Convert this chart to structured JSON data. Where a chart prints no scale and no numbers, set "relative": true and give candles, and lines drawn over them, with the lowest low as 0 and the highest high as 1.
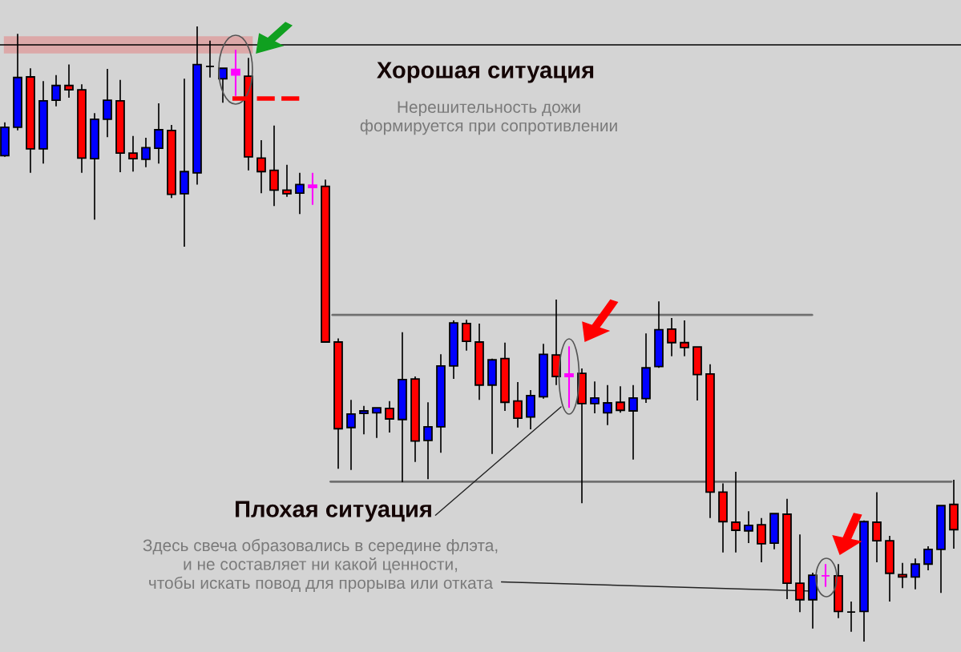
{
  "chart_data": {
    "type": "candlestick",
    "relative": true,
    "categories": [
      null,
      null,
      null,
      null,
      null,
      null,
      null,
      null,
      null,
      null,
      null,
      null,
      null,
      null,
      null,
      null,
      null,
      null,
      null,
      null,
      null,
      null,
      null,
      null,
      null,
      null,
      null,
      null,
      null,
      null,
      null,
      null,
      null,
      null,
      null,
      null,
      null,
      null,
      null,
      null,
      null,
      null,
      null,
      null,
      null,
      null,
      null,
      null,
      null,
      null,
      null,
      null,
      null,
      null,
      null,
      null,
      null,
      null,
      null,
      null,
      null,
      null,
      null,
      null,
      null,
      null,
      null,
      null,
      null,
      null,
      null,
      null,
      null,
      null,
      null
    ],
    "ohlc": [
      [
        0.79,
        0.844,
        0.788,
        0.836
      ],
      [
        0.836,
        0.988,
        0.831,
        0.917
      ],
      [
        0.918,
        0.932,
        0.762,
        0.801
      ],
      [
        0.801,
        0.911,
        0.777,
        0.879
      ],
      [
        0.88,
        0.921,
        0.87,
        0.904
      ],
      [
        0.904,
        0.938,
        0.884,
        0.897
      ],
      [
        0.897,
        0.906,
        0.762,
        0.786
      ],
      [
        0.785,
        0.859,
        0.686,
        0.849
      ],
      [
        0.849,
        0.931,
        0.82,
        0.88
      ],
      [
        0.879,
        0.913,
        0.763,
        0.794
      ],
      [
        0.794,
        0.822,
        0.764,
        0.785
      ],
      [
        0.784,
        0.819,
        0.771,
        0.803
      ],
      [
        0.802,
        0.875,
        0.777,
        0.832
      ],
      [
        0.831,
        0.84,
        0.721,
        0.727
      ],
      [
        0.728,
        0.915,
        0.642,
        0.764
      ],
      [
        0.762,
        1.0,
        0.743,
        0.938
      ],
      [
        0.935,
        0.977,
        0.917,
        0.935
      ],
      [
        0.915,
        0.932,
        0.876,
        0.932
      ],
      [
        0.93,
        0.962,
        0.887,
        0.921
      ],
      [
        0.919,
        0.949,
        0.766,
        0.788
      ],
      [
        0.786,
        0.815,
        0.729,
        0.764
      ],
      [
        0.766,
        0.839,
        0.708,
        0.734
      ],
      [
        0.734,
        0.775,
        0.723,
        0.728
      ],
      [
        0.729,
        0.762,
        0.695,
        0.743
      ],
      [
        0.742,
        0.762,
        0.71,
        0.738
      ],
      [
        0.74,
        0.751,
        0.486,
        0.487
      ],
      [
        0.487,
        0.493,
        0.281,
        0.346
      ],
      [
        0.348,
        0.393,
        0.279,
        0.37
      ],
      [
        0.371,
        0.383,
        0.337,
        0.375
      ],
      [
        0.372,
        0.38,
        0.331,
        0.38
      ],
      [
        0.379,
        0.391,
        0.34,
        0.362
      ],
      [
        0.361,
        0.503,
        0.259,
        0.426
      ],
      [
        0.427,
        0.431,
        0.292,
        0.326
      ],
      [
        0.327,
        0.389,
        0.264,
        0.349
      ],
      [
        0.349,
        0.467,
        0.307,
        0.448
      ],
      [
        0.448,
        0.522,
        0.427,
        0.518
      ],
      [
        0.517,
        0.523,
        0.473,
        0.488
      ],
      [
        0.487,
        0.517,
        0.393,
        0.417
      ],
      [
        0.417,
        0.46,
        0.305,
        0.458
      ],
      [
        0.46,
        0.486,
        0.375,
        0.389
      ],
      [
        0.391,
        0.422,
        0.348,
        0.363
      ],
      [
        0.365,
        0.409,
        0.345,
        0.4
      ],
      [
        0.398,
        0.484,
        0.395,
        0.467
      ],
      [
        0.466,
        0.556,
        0.417,
        0.431
      ],
      [
        0.431,
        0.48,
        0.38,
        0.435
      ],
      [
        0.436,
        0.444,
        0.225,
        0.387
      ],
      [
        0.387,
        0.423,
        0.371,
        0.396
      ],
      [
        0.372,
        0.417,
        0.352,
        0.388
      ],
      [
        0.389,
        0.415,
        0.372,
        0.376
      ],
      [
        0.375,
        0.417,
        0.296,
        0.396
      ],
      [
        0.395,
        0.501,
        0.388,
        0.445
      ],
      [
        0.447,
        0.553,
        0.445,
        0.507
      ],
      [
        0.508,
        0.526,
        0.464,
        0.486
      ],
      [
        0.486,
        0.522,
        0.464,
        0.478
      ],
      [
        0.479,
        0.479,
        0.392,
        0.434
      ],
      [
        0.435,
        0.451,
        0.201,
        0.243
      ],
      [
        0.243,
        0.257,
        0.145,
        0.195
      ],
      [
        0.194,
        0.276,
        0.145,
        0.181
      ],
      [
        0.18,
        0.212,
        0.16,
        0.189
      ],
      [
        0.19,
        0.201,
        0.129,
        0.159
      ],
      [
        0.16,
        0.208,
        0.15,
        0.208
      ],
      [
        0.207,
        0.232,
        0.069,
        0.095
      ],
      [
        0.095,
        0.174,
        0.048,
        0.068
      ],
      [
        0.068,
        0.112,
        0.021,
        0.108
      ],
      [
        0.107,
        0.126,
        0.089,
        0.107
      ],
      [
        0.107,
        0.126,
        0.038,
        0.049
      ],
      [
        0.048,
        0.065,
        0.016,
        0.048
      ],
      [
        0.049,
        0.197,
        0.0,
        0.195
      ],
      [
        0.194,
        0.243,
        0.129,
        0.164
      ],
      [
        0.164,
        0.172,
        0.065,
        0.111
      ],
      [
        0.109,
        0.128,
        0.087,
        0.105
      ],
      [
        0.105,
        0.135,
        0.085,
        0.126
      ],
      [
        0.126,
        0.155,
        0.116,
        0.15
      ],
      [
        0.15,
        0.221,
        0.079,
        0.221
      ],
      [
        0.223,
        0.263,
        0.151,
        0.182
      ]
    ],
    "colors": [
      "#0000ff",
      "#0000ff",
      "#ff0000",
      "#0000ff",
      "#0000ff",
      "#ff0000",
      "#ff0000",
      "#0000ff",
      "#0000ff",
      "#ff0000",
      "#ff0000",
      "#0000ff",
      "#0000ff",
      "#ff0000",
      "#0000ff",
      "#0000ff",
      "#000000",
      "#0000ff",
      "#ff00ff",
      "#ff0000",
      "#ff0000",
      "#ff0000",
      "#ff0000",
      "#0000ff",
      "#ff00ff",
      "#ff0000",
      "#ff0000",
      "#0000ff",
      "#0000ff",
      "#0000ff",
      "#ff0000",
      "#0000ff",
      "#ff0000",
      "#0000ff",
      "#0000ff",
      "#0000ff",
      "#ff0000",
      "#ff0000",
      "#0000ff",
      "#ff0000",
      "#ff0000",
      "#0000ff",
      "#0000ff",
      "#ff0000",
      "#ff00ff",
      "#ff0000",
      "#0000ff",
      "#0000ff",
      "#ff0000",
      "#0000ff",
      "#0000ff",
      "#0000ff",
      "#ff0000",
      "#ff0000",
      "#ff0000",
      "#ff0000",
      "#ff0000",
      "#ff0000",
      "#0000ff",
      "#ff0000",
      "#0000ff",
      "#ff0000",
      "#ff0000",
      "#0000ff",
      "#ff00ff",
      "#ff0000",
      "#000000",
      "#0000ff",
      "#ff0000",
      "#ff0000",
      "#ff0000",
      "#0000ff",
      "#0000ff",
      "#0000ff",
      "#ff0000"
    ],
    "ref_lines": [
      {
        "axis": "y",
        "value": 0.97,
        "label": null,
        "color": "#000000"
      },
      {
        "axis": "y",
        "value": 0.531,
        "label": null,
        "color": "#707070"
      },
      {
        "axis": "y",
        "value": 0.26,
        "label": null,
        "color": "#707070"
      }
    ],
    "bands": [
      {
        "axis": "y",
        "from": 0.956,
        "to": 0.984,
        "label": null,
        "color": "#dca8a8"
      }
    ],
    "annotations": [
      "Хорошая ситуация",
      "Нерешительность дожи\nформируется при сопротивлении",
      "Плохая ситуация",
      "Здесь свеча образовались в середине флэта,\nи не составляет ни какой ценности,\nчтобы искать повод для прорыва или отката"
    ],
    "grid": false
  }
}
